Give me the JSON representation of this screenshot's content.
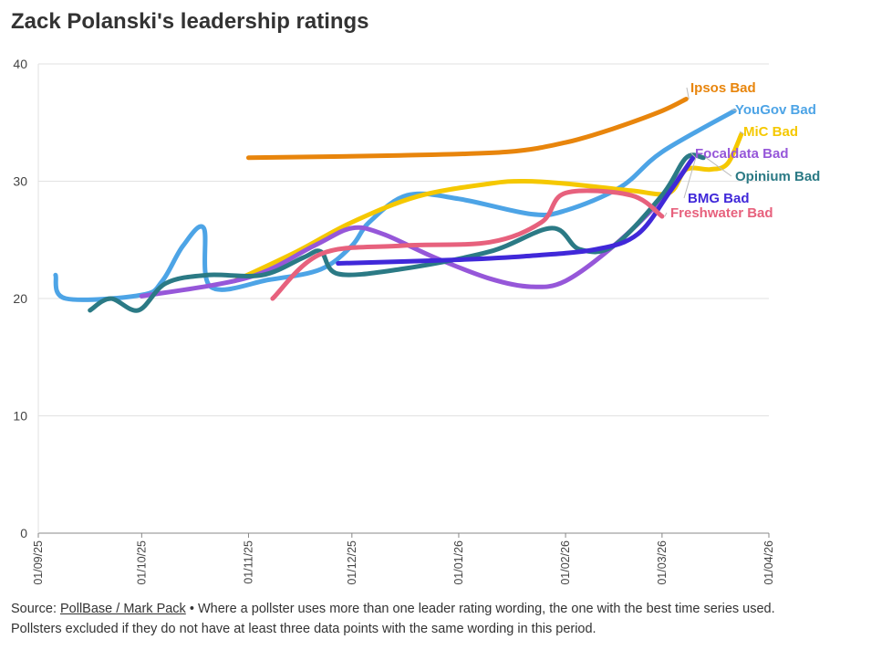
{
  "title": "Zack Polanski's leadership ratings",
  "footer": {
    "source_prefix": "Source: ",
    "source_link": "PollBase / Mark Pack",
    "source_rest": " • Where a pollster uses more than one leader rating wording, the one with the best time series used.",
    "line2": "Pollsters excluded if they do not have at least three data points with the same wording in this period."
  },
  "chart_data": {
    "type": "line",
    "title": "Zack Polanski's leadership ratings",
    "xlabel": "",
    "ylabel": "",
    "ylim": [
      0,
      40
    ],
    "y_ticks": [
      0,
      10,
      20,
      30,
      40
    ],
    "xlim": [
      "2025-09-01",
      "2026-04-01"
    ],
    "x_ticks": [
      "01/09/25",
      "01/10/25",
      "01/11/25",
      "01/12/25",
      "01/01/26",
      "01/02/26",
      "01/03/26",
      "01/04/26"
    ],
    "grid": true,
    "series": [
      {
        "name": "Ipsos Bad",
        "color": "#e8850c",
        "points": [
          [
            "2025-11-01",
            32
          ],
          [
            "2025-12-15",
            32.2
          ],
          [
            "2026-01-15",
            32.5
          ],
          [
            "2026-02-01",
            33.3
          ],
          [
            "2026-02-15",
            34.5
          ],
          [
            "2026-03-01",
            36
          ],
          [
            "2026-03-08",
            37
          ]
        ]
      },
      {
        "name": "YouGov Bad",
        "color": "#4da4e6",
        "points": [
          [
            "2025-09-06",
            22
          ],
          [
            "2025-09-09",
            20
          ],
          [
            "2025-10-01",
            20.3
          ],
          [
            "2025-10-07",
            21.5
          ],
          [
            "2025-10-13",
            24.5
          ],
          [
            "2025-10-19",
            26
          ],
          [
            "2025-10-21",
            21
          ],
          [
            "2025-11-07",
            21.6
          ],
          [
            "2025-11-22",
            22.5
          ],
          [
            "2025-12-01",
            24.5
          ],
          [
            "2025-12-06",
            26.5
          ],
          [
            "2025-12-17",
            28.8
          ],
          [
            "2026-01-01",
            28.5
          ],
          [
            "2026-01-22",
            27.2
          ],
          [
            "2026-02-01",
            27.5
          ],
          [
            "2026-02-17",
            29.5
          ],
          [
            "2026-03-01",
            32.5
          ],
          [
            "2026-03-22",
            36
          ]
        ]
      },
      {
        "name": "MiC Bad",
        "color": "#f5c800",
        "points": [
          [
            "2025-10-28",
            21.5
          ],
          [
            "2025-11-15",
            24
          ],
          [
            "2025-12-01",
            26.5
          ],
          [
            "2025-12-20",
            28.7
          ],
          [
            "2026-01-10",
            29.8
          ],
          [
            "2026-01-20",
            30
          ],
          [
            "2026-02-01",
            29.8
          ],
          [
            "2026-02-20",
            29.2
          ],
          [
            "2026-03-03",
            29
          ],
          [
            "2026-03-08",
            31
          ],
          [
            "2026-03-15",
            31
          ],
          [
            "2026-03-20",
            31.5
          ],
          [
            "2026-03-24",
            34
          ]
        ]
      },
      {
        "name": "Focaldata Bad",
        "color": "#9657d9",
        "points": [
          [
            "2025-10-01",
            20.2
          ],
          [
            "2025-11-01",
            21.8
          ],
          [
            "2025-11-20",
            24.5
          ],
          [
            "2025-12-01",
            26
          ],
          [
            "2025-12-10",
            25.5
          ],
          [
            "2025-12-25",
            23.5
          ],
          [
            "2026-01-10",
            21.7
          ],
          [
            "2026-01-22",
            21
          ],
          [
            "2026-02-01",
            21.5
          ],
          [
            "2026-02-15",
            24.5
          ],
          [
            "2026-03-01",
            28.5
          ],
          [
            "2026-03-10",
            32
          ]
        ]
      },
      {
        "name": "Opinium Bad",
        "color": "#2b7a85",
        "points": [
          [
            "2025-09-16",
            19
          ],
          [
            "2025-09-22",
            20
          ],
          [
            "2025-09-30",
            19
          ],
          [
            "2025-10-08",
            21.3
          ],
          [
            "2025-10-20",
            22
          ],
          [
            "2025-11-05",
            22
          ],
          [
            "2025-11-17",
            23.5
          ],
          [
            "2025-11-22",
            24
          ],
          [
            "2025-11-27",
            22.1
          ],
          [
            "2025-12-15",
            22.5
          ],
          [
            "2026-01-10",
            24
          ],
          [
            "2026-01-28",
            26
          ],
          [
            "2026-02-05",
            24.2
          ],
          [
            "2026-02-15",
            24.5
          ],
          [
            "2026-03-01",
            28.8
          ],
          [
            "2026-03-08",
            32
          ],
          [
            "2026-03-13",
            32
          ]
        ]
      },
      {
        "name": "BMG Bad",
        "color": "#4028d9",
        "points": [
          [
            "2025-11-27",
            23
          ],
          [
            "2025-12-31",
            23.3
          ],
          [
            "2026-01-20",
            23.6
          ],
          [
            "2026-02-10",
            24.2
          ],
          [
            "2026-02-22",
            25.5
          ],
          [
            "2026-03-03",
            29
          ],
          [
            "2026-03-10",
            32
          ]
        ]
      },
      {
        "name": "Freshwater Bad",
        "color": "#e7617d",
        "points": [
          [
            "2025-11-08",
            20
          ],
          [
            "2025-11-22",
            23.8
          ],
          [
            "2025-12-15",
            24.5
          ],
          [
            "2026-01-10",
            24.8
          ],
          [
            "2026-01-25",
            26.5
          ],
          [
            "2026-02-01",
            29
          ],
          [
            "2026-02-20",
            28.8
          ],
          [
            "2026-03-01",
            27
          ]
        ]
      }
    ]
  }
}
